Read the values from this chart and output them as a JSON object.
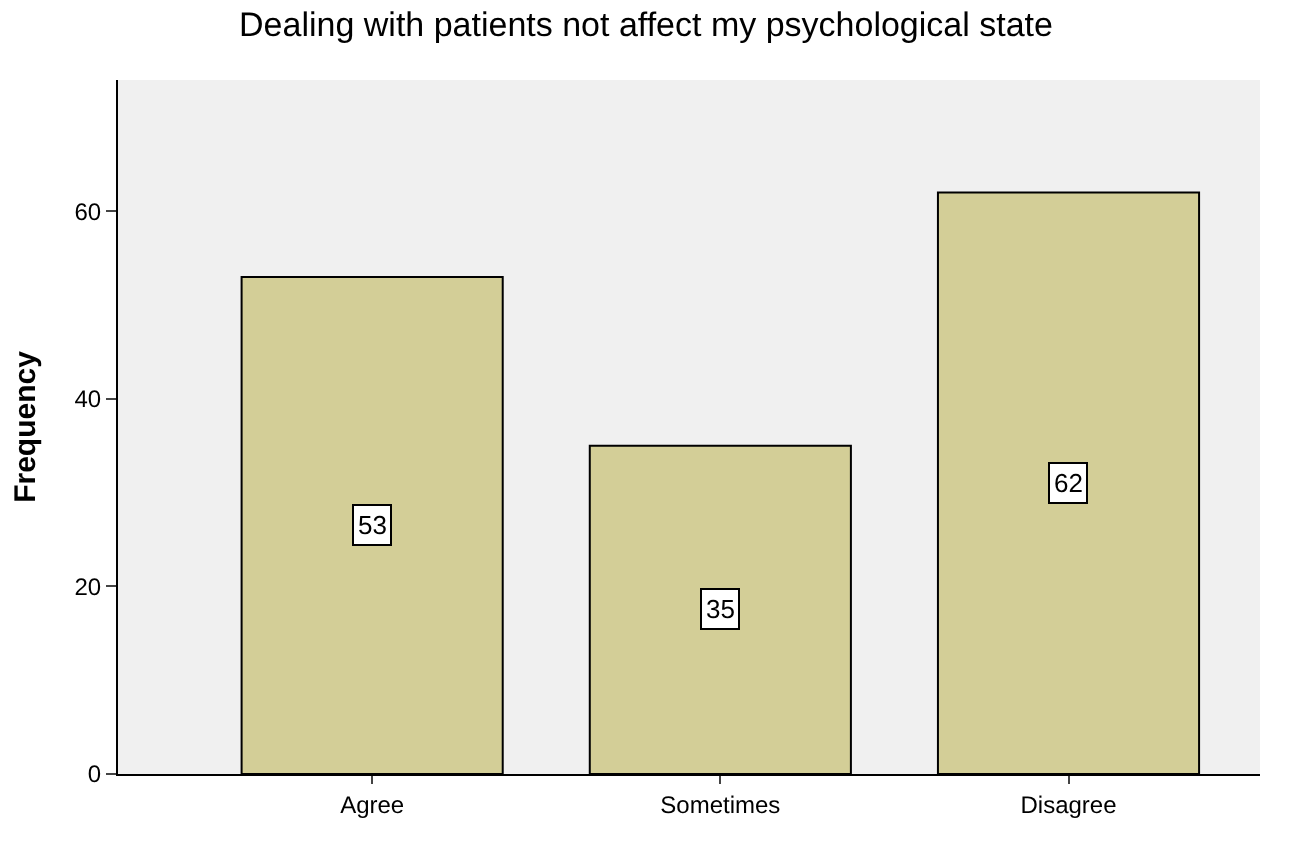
{
  "chart_data": {
    "type": "bar",
    "title": "Dealing with patients not affect my psychological state",
    "ylabel": "Frequency",
    "categories": [
      "Agree",
      "Sometimes",
      "Disagree"
    ],
    "values": [
      53,
      35,
      62
    ],
    "color": "#d3ce97",
    "ylim": [
      0,
      74
    ],
    "yticks": [
      0,
      20,
      40,
      60
    ],
    "grid": false,
    "data_labels": true
  }
}
